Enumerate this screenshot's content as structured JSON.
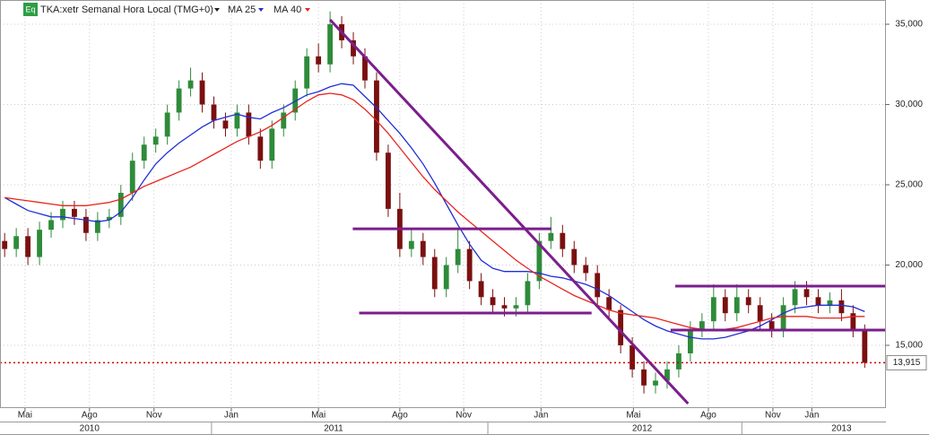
{
  "chart_data": {
    "type": "candlestick",
    "icon_label": "Eq",
    "title": "TKA:xetr Semanal Hora Local (TMG+0)",
    "up_color": "#2e8b3a",
    "down_color": "#7a1010",
    "grid": true,
    "xlim": [
      -0.8,
      151.5
    ],
    "ylim": [
      11090,
      36510
    ],
    "yticks": [
      {
        "value": 15000,
        "label": "15,000"
      },
      {
        "value": 20000,
        "label": "20,000"
      },
      {
        "value": 25000,
        "label": "25,000"
      },
      {
        "value": 30000,
        "label": "30,000"
      },
      {
        "value": 35000,
        "label": "35,000"
      }
    ],
    "xticks": [
      {
        "value": 3.5,
        "label": "Mai"
      },
      {
        "value": 14.6,
        "label": "Ago"
      },
      {
        "value": 25.7,
        "label": "Nov"
      },
      {
        "value": 39.0,
        "label": "Jan"
      },
      {
        "value": 54.0,
        "label": "Mai"
      },
      {
        "value": 68.0,
        "label": "Ago"
      },
      {
        "value": 79.0,
        "label": "Nov"
      },
      {
        "value": 92.3,
        "label": "Jan"
      },
      {
        "value": 108.2,
        "label": "Mai"
      },
      {
        "value": 121.1,
        "label": "Ago"
      },
      {
        "value": 132.2,
        "label": "Nov"
      },
      {
        "value": 138.9,
        "label": "Jan"
      }
    ],
    "year_ticks": [
      {
        "value": 14.6,
        "label": "2010"
      },
      {
        "value": 56.6,
        "label": "2011"
      },
      {
        "value": 109.7,
        "label": "2012"
      },
      {
        "value": 144.0,
        "label": "2013"
      }
    ],
    "x": [
      0,
      2,
      4,
      6,
      8,
      10,
      12,
      14,
      16,
      18,
      20,
      22,
      24,
      26,
      28,
      30,
      32,
      34,
      36,
      38,
      40,
      42,
      44,
      46,
      48,
      50,
      52,
      54,
      56,
      58,
      60,
      62,
      64,
      66,
      68,
      70,
      72,
      74,
      76,
      78,
      80,
      82,
      84,
      86,
      88,
      90,
      92,
      94,
      96,
      98,
      100,
      102,
      104,
      106,
      108,
      110,
      112,
      114,
      116,
      118,
      120,
      122,
      124,
      126,
      128,
      130,
      132,
      134,
      136,
      138,
      140,
      142,
      144,
      146,
      148
    ],
    "open": [
      21500,
      21000,
      21800,
      20500,
      22200,
      22800,
      23500,
      23000,
      22000,
      22800,
      23000,
      24500,
      26500,
      27500,
      28000,
      29500,
      31000,
      31500,
      30000,
      29000,
      28500,
      29500,
      28000,
      26500,
      28500,
      29500,
      31000,
      33000,
      32500,
      35000,
      34000,
      33000,
      31500,
      27000,
      23500,
      21000,
      21500,
      20500,
      18500,
      20000,
      21000,
      19000,
      18000,
      17500,
      17300,
      17500,
      19000,
      21500,
      22000,
      21000,
      20000,
      19500,
      18000,
      17200,
      15000,
      13500,
      12500,
      12800,
      13500,
      14500,
      16000,
      16500,
      18000,
      17000,
      18000,
      17500,
      16500,
      16000,
      17500,
      18500,
      18000,
      17500,
      17800,
      17000,
      16000
    ],
    "high": [
      22000,
      22300,
      22300,
      22700,
      23300,
      24000,
      24000,
      23500,
      23300,
      23500,
      25000,
      27000,
      28000,
      28500,
      30000,
      31500,
      32300,
      32000,
      30500,
      29500,
      30000,
      30000,
      28500,
      29000,
      30000,
      31500,
      33500,
      33800,
      35800,
      35500,
      34500,
      33500,
      32000,
      27500,
      24500,
      22300,
      22000,
      21000,
      20500,
      22300,
      21500,
      19500,
      18500,
      18000,
      18000,
      19500,
      22000,
      23000,
      22500,
      21500,
      20500,
      20000,
      18500,
      17500,
      15500,
      14000,
      13300,
      14000,
      15000,
      16500,
      17000,
      18800,
      18500,
      18800,
      18500,
      18000,
      17000,
      18000,
      19000,
      19000,
      18500,
      18300,
      18500,
      17500,
      16300
    ],
    "low": [
      20500,
      20500,
      20000,
      20000,
      21700,
      22300,
      22500,
      21500,
      21500,
      22300,
      22500,
      24000,
      26000,
      27000,
      27500,
      29000,
      30500,
      29500,
      28500,
      28000,
      28000,
      27500,
      26000,
      26000,
      28000,
      29000,
      30500,
      32000,
      32000,
      33500,
      32500,
      31000,
      26500,
      23000,
      20500,
      20500,
      20000,
      18000,
      18000,
      19500,
      18500,
      17500,
      17000,
      16800,
      16800,
      17000,
      18500,
      21000,
      20500,
      19500,
      19000,
      17500,
      16700,
      14500,
      13000,
      12000,
      12000,
      12300,
      13000,
      14000,
      15500,
      16000,
      16500,
      16500,
      17000,
      16000,
      15500,
      15500,
      17000,
      17500,
      17000,
      17000,
      16500,
      15500,
      13600
    ],
    "close": [
      21000,
      21800,
      20500,
      22200,
      22800,
      23500,
      23000,
      22000,
      22800,
      23000,
      24500,
      26500,
      27500,
      28000,
      29500,
      31000,
      31500,
      30000,
      29000,
      28500,
      29500,
      28000,
      26500,
      28500,
      29500,
      31000,
      33000,
      32500,
      35000,
      34000,
      33000,
      31500,
      27000,
      23500,
      21000,
      21500,
      20500,
      18500,
      20000,
      21000,
      19000,
      18000,
      17500,
      17300,
      17500,
      19000,
      21500,
      22000,
      21000,
      20000,
      19500,
      18000,
      17200,
      15000,
      13500,
      12500,
      12800,
      13500,
      14500,
      16000,
      16500,
      18000,
      17000,
      18000,
      17500,
      16500,
      16000,
      17500,
      18500,
      18000,
      17500,
      17800,
      17000,
      16000,
      13915
    ],
    "series": [
      {
        "name": "MA 25",
        "color": "#1f2fd6",
        "values": [
          24200,
          23800,
          23400,
          23200,
          23000,
          23000,
          22900,
          22800,
          22700,
          22800,
          23300,
          24200,
          25300,
          26300,
          27000,
          27600,
          28100,
          28600,
          29000,
          29200,
          29400,
          29200,
          29100,
          29500,
          29800,
          30200,
          30600,
          30800,
          31100,
          31300,
          31200,
          30500,
          29800,
          29000,
          28200,
          27300,
          26300,
          25100,
          23800,
          22500,
          21300,
          20300,
          19800,
          19600,
          19600,
          19600,
          19500,
          19300,
          19200,
          19000,
          18800,
          18500,
          18100,
          17600,
          17100,
          16600,
          16200,
          15900,
          15700,
          15500,
          15400,
          15400,
          15500,
          15700,
          15900,
          16200,
          16600,
          17000,
          17300,
          17400,
          17500,
          17500,
          17500,
          17400,
          17100
        ]
      },
      {
        "name": "MA 40",
        "color": "#e8251f",
        "values": [
          24200,
          24100,
          24000,
          23900,
          23800,
          23700,
          23700,
          23700,
          23800,
          23900,
          24100,
          24500,
          24900,
          25200,
          25500,
          25800,
          26100,
          26500,
          26900,
          27300,
          27700,
          28000,
          28300,
          28700,
          29200,
          29700,
          30200,
          30600,
          30700,
          30600,
          30300,
          29700,
          29000,
          28200,
          27300,
          26400,
          25500,
          24700,
          24000,
          23300,
          22700,
          22100,
          21500,
          20900,
          20300,
          19800,
          19300,
          18900,
          18500,
          18100,
          17800,
          17500,
          17200,
          17000,
          16900,
          16800,
          16700,
          16500,
          16300,
          16100,
          16000,
          16000,
          16000,
          16100,
          16300,
          16500,
          16700,
          16800,
          16800,
          16800,
          16700,
          16700,
          16700,
          16800,
          16800
        ]
      }
    ],
    "trend_lines": {
      "color": "#7b1e8c",
      "lines": [
        {
          "x": [
            56.0,
            117.6
          ],
          "y": [
            35280,
            11370
          ]
        },
        {
          "x": [
            59.9,
            94.1
          ],
          "y": [
            22260,
            22260
          ]
        },
        {
          "x": [
            61.0,
            101.0
          ],
          "y": [
            17010,
            17010
          ]
        },
        {
          "x": [
            115.4,
            151.5
          ],
          "y": [
            18690,
            18690
          ]
        },
        {
          "x": [
            114.6,
            151.5
          ],
          "y": [
            15950,
            15950
          ]
        }
      ]
    },
    "last_price": {
      "value": 13915,
      "label": "13,915",
      "color": "#d00000"
    }
  }
}
